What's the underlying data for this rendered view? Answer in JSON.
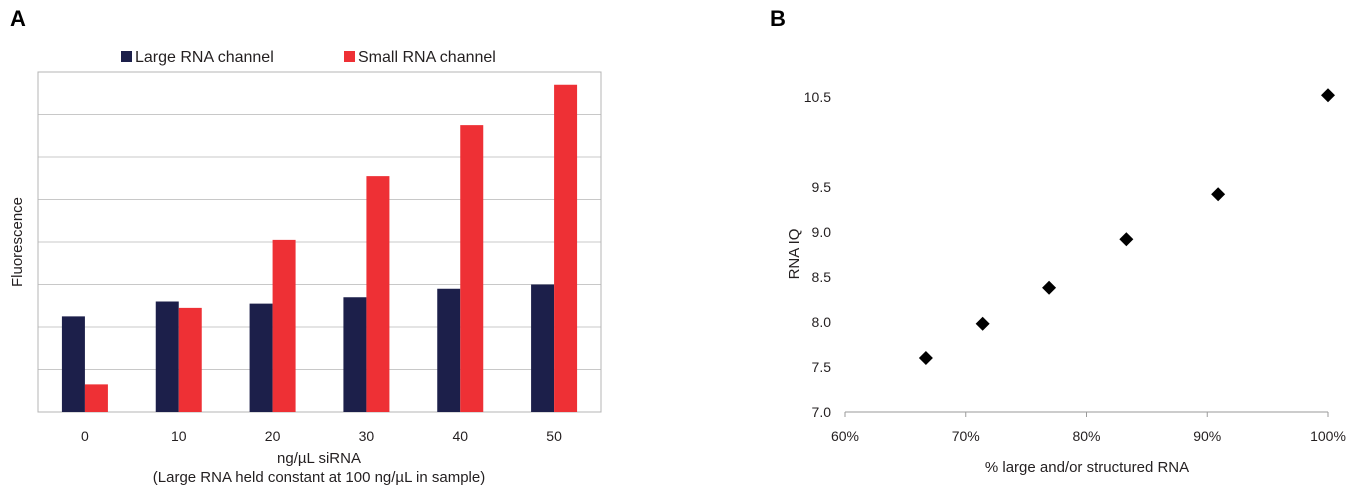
{
  "panels": {
    "a_label": "A",
    "b_label": "B"
  },
  "colors": {
    "large": "#1c1f4a",
    "small": "#ee3035",
    "marker": "#000000",
    "grid": "#c8c8c8"
  },
  "chart_data": [
    {
      "type": "bar",
      "panel": "A",
      "categories": [
        "0",
        "10",
        "20",
        "30",
        "40",
        "50"
      ],
      "series": [
        {
          "name": "Large RNA channel",
          "values": [
            2.25,
            2.6,
            2.55,
            2.7,
            2.9,
            3.0
          ]
        },
        {
          "name": "Small RNA channel",
          "values": [
            0.65,
            2.45,
            4.05,
            5.55,
            6.75,
            7.7
          ]
        }
      ],
      "xlabel": "ng/µL siRNA",
      "xlabel_sub": "(Large RNA held constant at 100 ng/µL in sample)",
      "ylabel": "Fluorescence",
      "ylim": [
        0,
        8
      ],
      "ygrid_count": 8,
      "grid": true,
      "legend_position": "top"
    },
    {
      "type": "scatter",
      "panel": "B",
      "x": [
        66.7,
        71.4,
        76.9,
        83.3,
        90.9,
        100
      ],
      "y": [
        7.6,
        7.98,
        8.38,
        8.92,
        9.42,
        10.52
      ],
      "x_ticks": [
        "60%",
        "70%",
        "80%",
        "90%",
        "100%"
      ],
      "y_ticks": [
        "7.0",
        "7.5",
        "8.0",
        "8.5",
        "9.0",
        "9.5",
        "10.5"
      ],
      "xlabel": "% large and/or structured RNA",
      "ylabel": "RNA IQ",
      "xlim": [
        60,
        100
      ],
      "ylim": [
        7.0,
        10.5
      ],
      "grid": false
    }
  ]
}
